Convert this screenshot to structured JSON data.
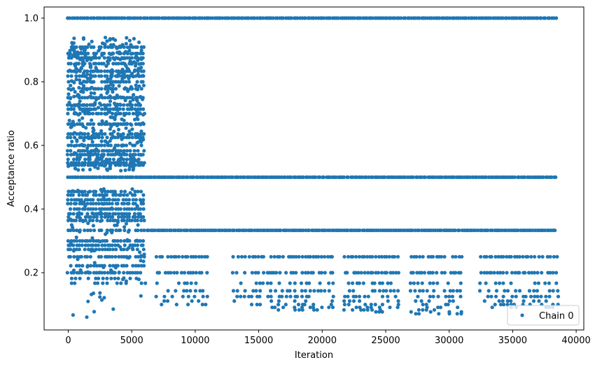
{
  "chart_data": {
    "type": "scatter",
    "xlabel": "Iteration",
    "ylabel": "Acceptance ratio",
    "xlim": [
      -1900,
      40600
    ],
    "ylim": [
      0.02,
      1.035
    ],
    "xticks": [
      0,
      5000,
      10000,
      15000,
      20000,
      25000,
      30000,
      35000,
      40000
    ],
    "xtick_labels": [
      "0",
      "5000",
      "10000",
      "15000",
      "20000",
      "25000",
      "30000",
      "35000",
      "40000"
    ],
    "yticks": [
      0.2,
      0.4,
      0.6,
      0.8,
      1.0
    ],
    "ytick_labels": [
      "0.2",
      "0.4",
      "0.6",
      "0.8",
      "1.0"
    ],
    "grid": false,
    "legend_position": "lower right",
    "series": [
      {
        "name": "Chain 0",
        "color": "#1f77b4",
        "marker": "circle",
        "segments": [
          {
            "x_range": [
              0,
              38500
            ],
            "values": [
              1.0
            ]
          },
          {
            "x_range": [
              0,
              38500
            ],
            "values": [
              0.5
            ]
          },
          {
            "x_range": [
              0,
              6000
            ],
            "values": [
              0.909,
              0.889,
              0.875,
              0.857,
              0.833,
              0.818,
              0.8,
              0.778,
              0.75,
              0.727,
              0.714,
              0.7,
              0.667,
              0.636,
              0.625,
              0.6,
              0.583,
              0.571,
              0.556,
              0.545,
              0.538,
              0.455,
              0.444,
              0.429,
              0.417,
              0.4,
              0.385,
              0.375,
              0.364,
              0.333,
              0.3,
              0.286,
              0.273,
              0.25,
              0.222,
              0.2,
              0.182,
              0.167
            ]
          },
          {
            "x_range": [
              0,
              6000
            ],
            "values_scattered_range": [
              0.06,
              0.94
            ]
          },
          {
            "x_range": [
              6200,
              38500
            ],
            "values": [
              0.333
            ]
          },
          {
            "x_range": [
              7000,
              11000
            ],
            "values": [
              0.25,
              0.2,
              0.167,
              0.143,
              0.125,
              0.111,
              0.1
            ]
          },
          {
            "x_range": [
              13000,
              16000
            ],
            "values": [
              0.25,
              0.2,
              0.167,
              0.143,
              0.125,
              0.111,
              0.1
            ]
          },
          {
            "x_range": [
              16000,
              21000
            ],
            "values": [
              0.25,
              0.2,
              0.167,
              0.143,
              0.125,
              0.111,
              0.1,
              0.091,
              0.083
            ]
          },
          {
            "x_range": [
              21800,
              26000
            ],
            "values": [
              0.25,
              0.2,
              0.167,
              0.143,
              0.125,
              0.111,
              0.1,
              0.091,
              0.083,
              0.077
            ]
          },
          {
            "x_range": [
              27000,
              31000
            ],
            "values": [
              0.25,
              0.2,
              0.167,
              0.143,
              0.125,
              0.111,
              0.1,
              0.091,
              0.083,
              0.077,
              0.071
            ]
          },
          {
            "x_range": [
              32500,
              38500
            ],
            "values": [
              0.25,
              0.2,
              0.167,
              0.143,
              0.125,
              0.111,
              0.1,
              0.091
            ]
          }
        ]
      }
    ]
  }
}
